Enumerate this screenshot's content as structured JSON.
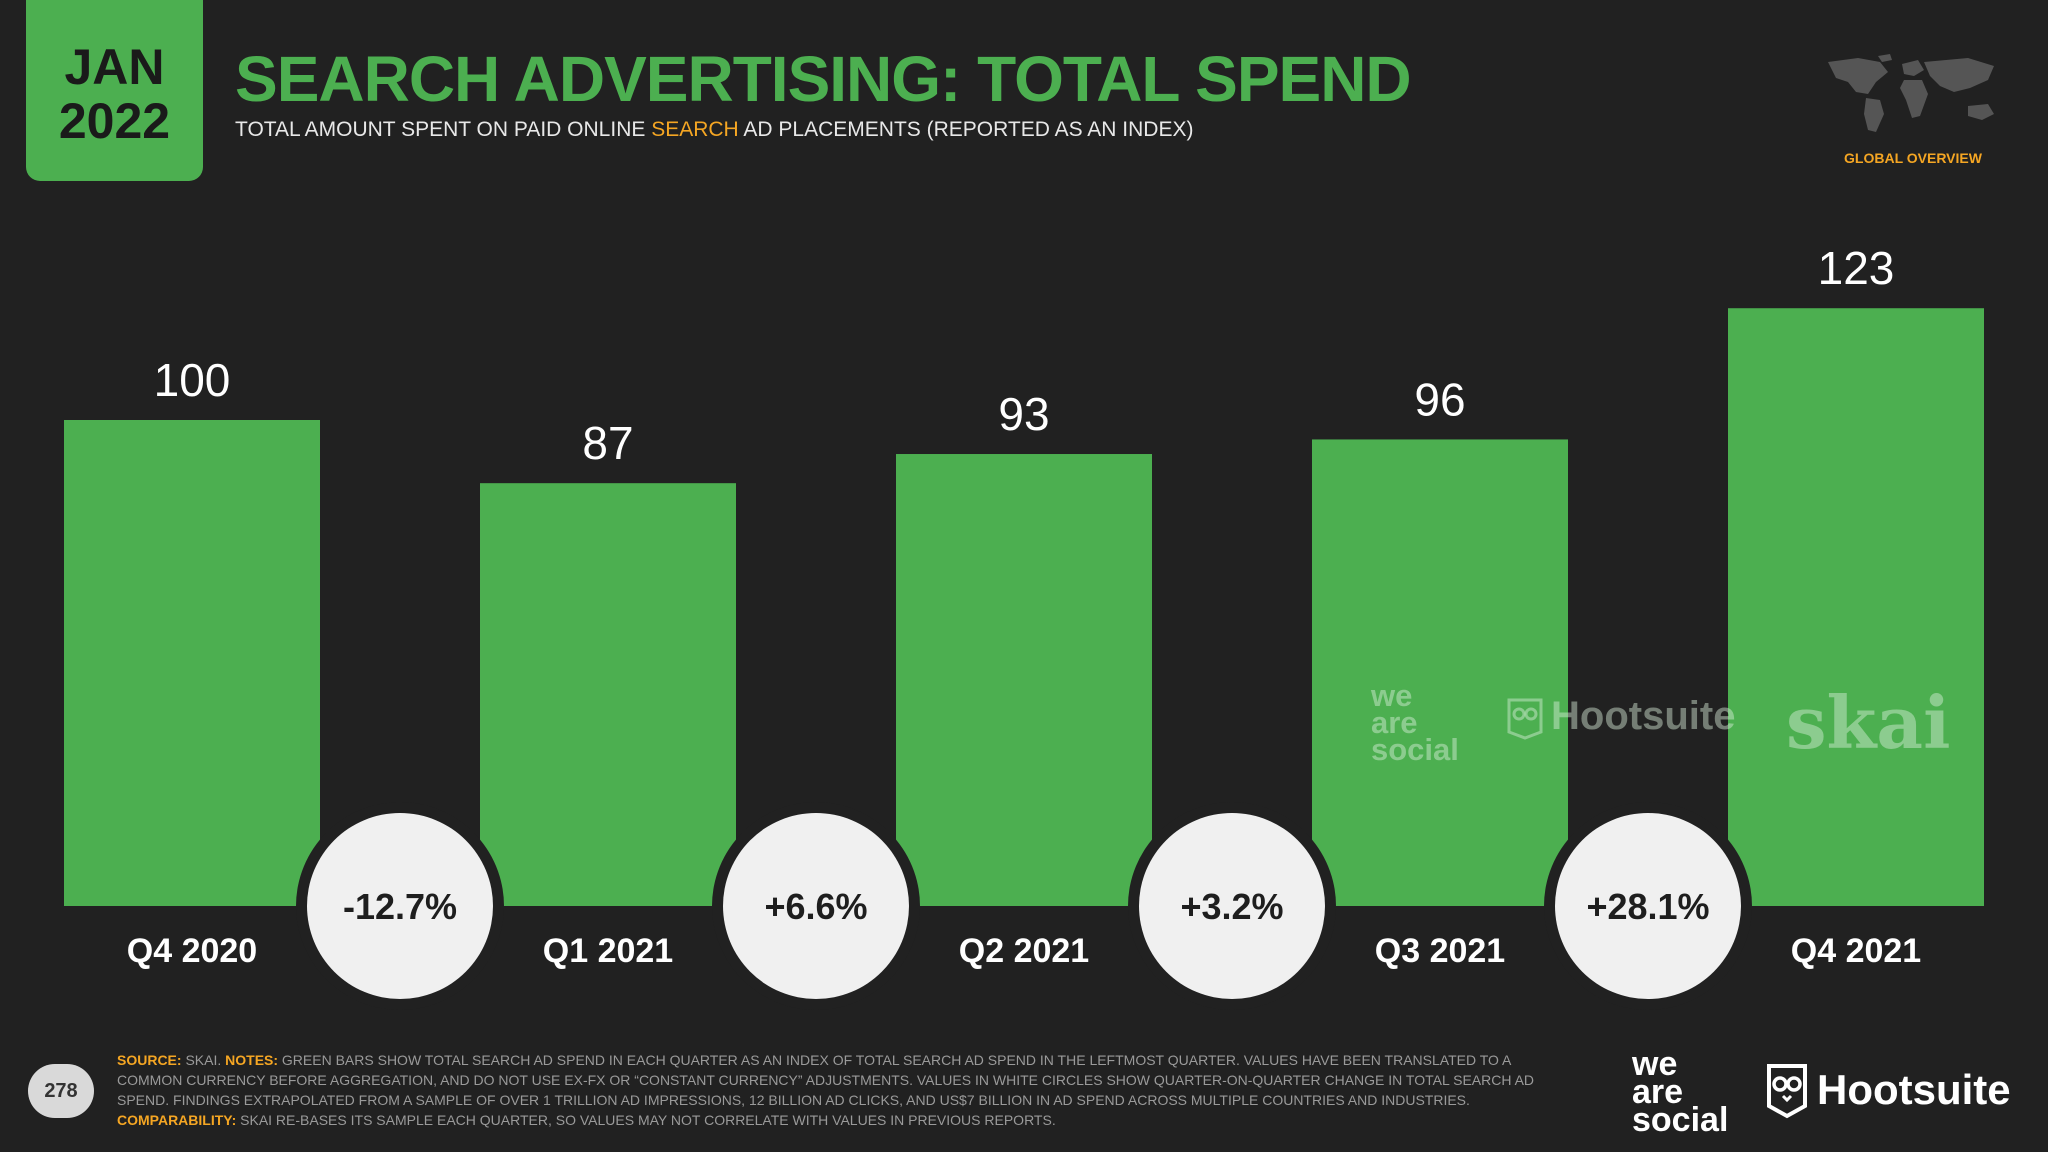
{
  "header": {
    "month": "JAN",
    "year": "2022",
    "title": "SEARCH ADVERTISING: TOTAL SPEND",
    "subtitle_pre": "TOTAL AMOUNT SPENT ON PAID ONLINE ",
    "subtitle_highlight": "SEARCH",
    "subtitle_post": " AD PLACEMENTS (REPORTED AS AN INDEX)",
    "badge": "GLOBAL OVERVIEW"
  },
  "chart_data": {
    "type": "bar",
    "title": "SEARCH ADVERTISING: TOTAL SPEND",
    "categories": [
      "Q4 2020",
      "Q1 2021",
      "Q2 2021",
      "Q3 2021",
      "Q4 2021"
    ],
    "values": [
      100,
      87,
      93,
      96,
      123
    ],
    "changes": [
      "-12.7%",
      "+6.6%",
      "+3.2%",
      "+28.1%"
    ],
    "ylim": [
      0,
      130
    ],
    "bar_color": "#4caf50",
    "circle_color": "#f0f0f0"
  },
  "watermarks": {
    "was": [
      "we",
      "are",
      "social"
    ],
    "hootsuite": "Hootsuite",
    "skai": "skai"
  },
  "footer": {
    "page_number": "278",
    "source_label": "SOURCE:",
    "source_text": "SKAI.",
    "notes_label": "NOTES:",
    "notes_text": "GREEN BARS SHOW TOTAL SEARCH AD SPEND IN EACH QUARTER AS AN INDEX OF TOTAL SEARCH AD SPEND IN THE LEFTMOST QUARTER. VALUES HAVE BEEN TRANSLATED TO A COMMON CURRENCY BEFORE AGGREGATION, AND DO NOT USE EX-FX OR “CONSTANT CURRENCY” ADJUSTMENTS. VALUES IN WHITE CIRCLES SHOW QUARTER-ON-QUARTER CHANGE IN TOTAL SEARCH AD SPEND. FINDINGS EXTRAPOLATED FROM A SAMPLE OF OVER 1 TRILLION AD IMPRESSIONS, 12 BILLION AD CLICKS, AND US$7 BILLION IN AD SPEND ACROSS MULTIPLE COUNTRIES AND INDUSTRIES.",
    "comparability_label": "COMPARABILITY:",
    "comparability_text": "SKAI RE-BASES ITS SAMPLE EACH QUARTER, SO VALUES MAY NOT CORRELATE WITH VALUES IN PREVIOUS REPORTS."
  },
  "logos": {
    "was": [
      "we",
      "are",
      "social"
    ],
    "hootsuite": "Hootsuite"
  }
}
